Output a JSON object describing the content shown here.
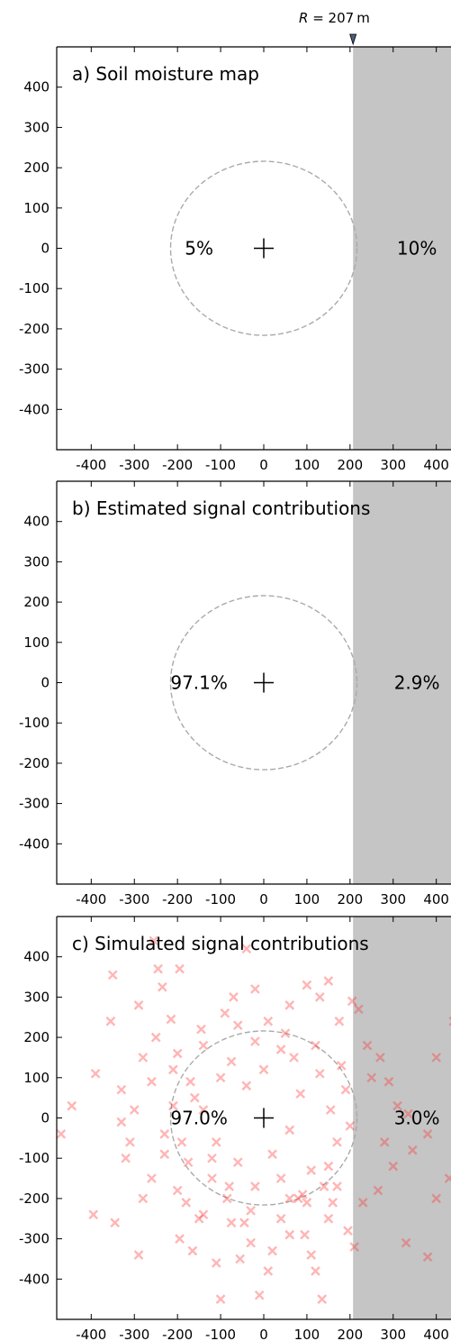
{
  "marker": {
    "label_prefix": "R",
    "label_eq": " = ",
    "label_value": "207",
    "label_unit": "m",
    "value": 207
  },
  "colors": {
    "shade": "#c5c5c5",
    "points": "#ff2a2a",
    "circle": "#aaaaaa",
    "marker": "#4a5f7a"
  },
  "chart_data": [
    {
      "type": "heatmap",
      "title": "a) Soil moisture map",
      "xlim": [
        -480,
        480
      ],
      "ylim": [
        -500,
        500
      ],
      "xticks": [
        -400,
        -300,
        -200,
        -100,
        0,
        100,
        200,
        300,
        400
      ],
      "yticks": [
        400,
        300,
        200,
        100,
        0,
        -100,
        -200,
        -300,
        -400
      ],
      "xtick_labels": [
        "-400",
        "-300",
        "-200",
        "-100",
        "0",
        "100",
        "200",
        "300",
        "400"
      ],
      "ytick_labels": [
        "400",
        "300",
        "200",
        "100",
        "0",
        "-100",
        "-200",
        "-300",
        "-400"
      ],
      "shaded_region_x_from": 207,
      "circle_radius": 216,
      "center": [
        0,
        0
      ],
      "region_labels": [
        {
          "text": "5%",
          "x": -150,
          "y": 0
        },
        {
          "text": "10%",
          "x": 355,
          "y": 0
        }
      ]
    },
    {
      "type": "heatmap",
      "title": "b) Estimated signal contributions",
      "xlim": [
        -480,
        480
      ],
      "ylim": [
        -500,
        500
      ],
      "xticks": [
        -400,
        -300,
        -200,
        -100,
        0,
        100,
        200,
        300,
        400
      ],
      "yticks": [
        400,
        300,
        200,
        100,
        0,
        -100,
        -200,
        -300,
        -400
      ],
      "xtick_labels": [
        "-400",
        "-300",
        "-200",
        "-100",
        "0",
        "100",
        "200",
        "300",
        "400"
      ],
      "ytick_labels": [
        "400",
        "300",
        "200",
        "100",
        "0",
        "-100",
        "-200",
        "-300",
        "-400"
      ],
      "shaded_region_x_from": 207,
      "circle_radius": 216,
      "center": [
        0,
        0
      ],
      "region_labels": [
        {
          "text": "97.1%",
          "x": -150,
          "y": 0
        },
        {
          "text": "2.9%",
          "x": 355,
          "y": 0
        }
      ]
    },
    {
      "type": "scatter",
      "title": "c) Simulated signal contributions",
      "xlim": [
        -480,
        480
      ],
      "ylim": [
        -500,
        500
      ],
      "xticks": [
        -400,
        -300,
        -200,
        -100,
        0,
        100,
        200,
        300,
        400
      ],
      "yticks": [
        400,
        300,
        200,
        100,
        0,
        -100,
        -200,
        -300,
        -400
      ],
      "xtick_labels": [
        "-400",
        "-300",
        "-200",
        "-100",
        "0",
        "100",
        "200",
        "300",
        "400"
      ],
      "ytick_labels": [
        "400",
        "300",
        "200",
        "100",
        "0",
        "-100",
        "-200",
        "-300",
        "-400"
      ],
      "shaded_region_x_from": 207,
      "circle_radius": 216,
      "center": [
        0,
        0
      ],
      "region_labels": [
        {
          "text": "97.0%",
          "x": -150,
          "y": 0
        },
        {
          "text": "3.0%",
          "x": 355,
          "y": 0
        }
      ],
      "points": [
        [
          -290,
          -340
        ],
        [
          -345,
          -260
        ],
        [
          -395,
          -240
        ],
        [
          -470,
          -40
        ],
        [
          -445,
          30
        ],
        [
          -390,
          110
        ],
        [
          -355,
          240
        ],
        [
          -350,
          355
        ],
        [
          -330,
          -10
        ],
        [
          -310,
          -60
        ],
        [
          -290,
          280
        ],
        [
          -255,
          440
        ],
        [
          -245,
          370
        ],
        [
          -235,
          325
        ],
        [
          -215,
          245
        ],
        [
          -195,
          370
        ],
        [
          -195,
          -300
        ],
        [
          -180,
          -210
        ],
        [
          -165,
          -330
        ],
        [
          -145,
          220
        ],
        [
          -140,
          -240
        ],
        [
          -120,
          -150
        ],
        [
          -110,
          -360
        ],
        [
          -100,
          -450
        ],
        [
          -85,
          -200
        ],
        [
          -75,
          -260
        ],
        [
          -55,
          -350
        ],
        [
          -45,
          -260
        ],
        [
          -30,
          -310
        ],
        [
          -20,
          -170
        ],
        [
          -10,
          -440
        ],
        [
          10,
          -380
        ],
        [
          20,
          -330
        ],
        [
          40,
          -250
        ],
        [
          60,
          -290
        ],
        [
          80,
          -200
        ],
        [
          95,
          -290
        ],
        [
          110,
          -340
        ],
        [
          120,
          -380
        ],
        [
          135,
          -450
        ],
        [
          150,
          -250
        ],
        [
          170,
          -170
        ],
        [
          195,
          -280
        ],
        [
          210,
          -320
        ],
        [
          230,
          -210
        ],
        [
          265,
          -180
        ],
        [
          300,
          -120
        ],
        [
          330,
          -310
        ],
        [
          380,
          -345
        ],
        [
          400,
          -200
        ],
        [
          430,
          -150
        ],
        [
          460,
          -60
        ],
        [
          490,
          70
        ],
        [
          470,
          170
        ],
        [
          440,
          240
        ],
        [
          400,
          150
        ],
        [
          380,
          -40
        ],
        [
          345,
          -80
        ],
        [
          335,
          10
        ],
        [
          310,
          30
        ],
        [
          290,
          90
        ],
        [
          270,
          150
        ],
        [
          240,
          180
        ],
        [
          220,
          270
        ],
        [
          205,
          290
        ],
        [
          175,
          240
        ],
        [
          150,
          340
        ],
        [
          130,
          300
        ],
        [
          100,
          330
        ],
        [
          60,
          -200
        ],
        [
          40,
          -150
        ],
        [
          -40,
          420
        ],
        [
          -90,
          260
        ],
        [
          -170,
          90
        ],
        [
          -210,
          30
        ],
        [
          -230,
          -40
        ],
        [
          -260,
          -150
        ],
        [
          -280,
          -200
        ],
        [
          -320,
          -100
        ],
        [
          -330,
          70
        ],
        [
          -280,
          150
        ],
        [
          -250,
          200
        ],
        [
          -200,
          160
        ],
        [
          -175,
          -110
        ],
        [
          -160,
          50
        ],
        [
          -140,
          180
        ],
        [
          -110,
          -60
        ],
        [
          -75,
          140
        ],
        [
          -60,
          -110
        ],
        [
          -40,
          80
        ],
        [
          -20,
          190
        ],
        [
          0,
          120
        ],
        [
          20,
          -90
        ],
        [
          40,
          170
        ],
        [
          60,
          -30
        ],
        [
          85,
          60
        ],
        [
          110,
          -130
        ],
        [
          130,
          110
        ],
        [
          155,
          20
        ],
        [
          170,
          -60
        ],
        [
          190,
          70
        ],
        [
          150,
          -120
        ],
        [
          120,
          180
        ],
        [
          90,
          -190
        ],
        [
          70,
          150
        ],
        [
          -100,
          100
        ],
        [
          -120,
          -100
        ],
        [
          -140,
          20
        ],
        [
          -190,
          -60
        ],
        [
          -210,
          120
        ],
        [
          -230,
          -90
        ],
        [
          -60,
          230
        ],
        [
          -30,
          -230
        ],
        [
          10,
          240
        ],
        [
          50,
          210
        ],
        [
          100,
          -210
        ],
        [
          140,
          -170
        ],
        [
          180,
          130
        ],
        [
          200,
          -20
        ],
        [
          -80,
          -170
        ],
        [
          250,
          100
        ],
        [
          280,
          -60
        ],
        [
          -260,
          90
        ],
        [
          -300,
          20
        ],
        [
          -150,
          -250
        ],
        [
          -200,
          -180
        ],
        [
          60,
          280
        ],
        [
          -20,
          320
        ],
        [
          -70,
          300
        ],
        [
          160,
          -210
        ]
      ]
    }
  ]
}
